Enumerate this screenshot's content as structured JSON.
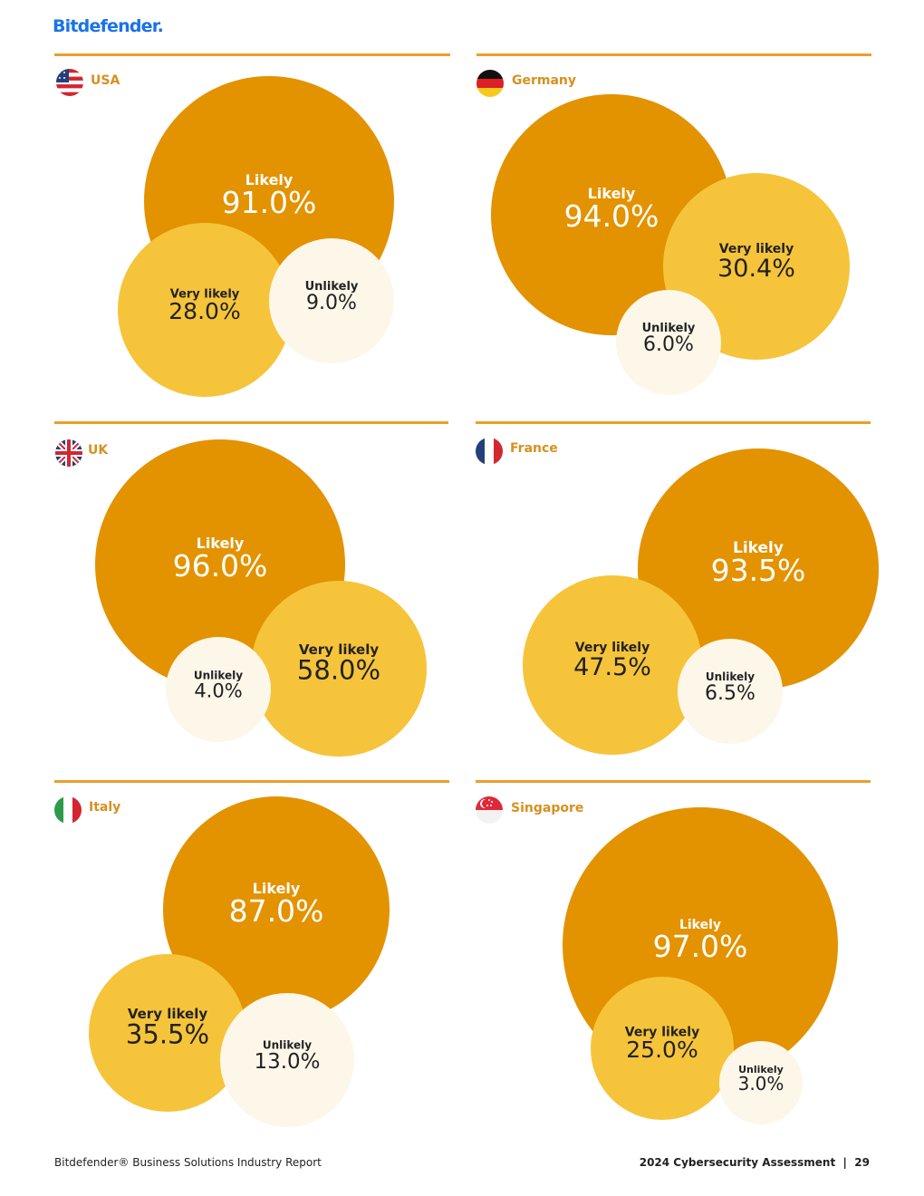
{
  "header": {
    "brand": "Bitdefender."
  },
  "footer": {
    "left": "Bitdefender® Business Solutions Industry Report",
    "right": "2024 Cybersecurity Assessment  |  29"
  },
  "colors": {
    "likely": "#e39200",
    "very_likely": "#f6c43a",
    "unlikely": "#fdf7ea",
    "accent": "#e8a02a",
    "country_label": "#d8901e"
  },
  "chart_data": [
    {
      "type": "bubble",
      "title": "USA",
      "flag": "usa-flag-icon",
      "series": [
        {
          "name": "Likely",
          "value": 91.0,
          "label": "91.0%"
        },
        {
          "name": "Very likely",
          "value": 28.0,
          "label": "28.0%"
        },
        {
          "name": "Unlikely",
          "value": 9.0,
          "label": "9.0%"
        }
      ]
    },
    {
      "type": "bubble",
      "title": "Germany",
      "flag": "germany-flag-icon",
      "series": [
        {
          "name": "Likely",
          "value": 94.0,
          "label": "94.0%"
        },
        {
          "name": "Very likely",
          "value": 30.4,
          "label": "30.4%"
        },
        {
          "name": "Unlikely",
          "value": 6.0,
          "label": "6.0%"
        }
      ]
    },
    {
      "type": "bubble",
      "title": "UK",
      "flag": "uk-flag-icon",
      "series": [
        {
          "name": "Likely",
          "value": 96.0,
          "label": "96.0%"
        },
        {
          "name": "Very likely",
          "value": 58.0,
          "label": "58.0%"
        },
        {
          "name": "Unlikely",
          "value": 4.0,
          "label": "4.0%"
        }
      ]
    },
    {
      "type": "bubble",
      "title": "France",
      "flag": "france-flag-icon",
      "series": [
        {
          "name": "Likely",
          "value": 93.5,
          "label": "93.5%"
        },
        {
          "name": "Very likely",
          "value": 47.5,
          "label": "47.5%"
        },
        {
          "name": "Unlikely",
          "value": 6.5,
          "label": "6.5%"
        }
      ]
    },
    {
      "type": "bubble",
      "title": "Italy",
      "flag": "italy-flag-icon",
      "series": [
        {
          "name": "Likely",
          "value": 87.0,
          "label": "87.0%"
        },
        {
          "name": "Very likely",
          "value": 35.5,
          "label": "35.5%"
        },
        {
          "name": "Unlikely",
          "value": 13.0,
          "label": "13.0%"
        }
      ]
    },
    {
      "type": "bubble",
      "title": "Singapore",
      "flag": "singapore-flag-icon",
      "series": [
        {
          "name": "Likely",
          "value": 97.0,
          "label": "97.0%"
        },
        {
          "name": "Very likely",
          "value": 25.0,
          "label": "25.0%"
        },
        {
          "name": "Unlikely",
          "value": 3.0,
          "label": "3.0%"
        }
      ]
    }
  ]
}
